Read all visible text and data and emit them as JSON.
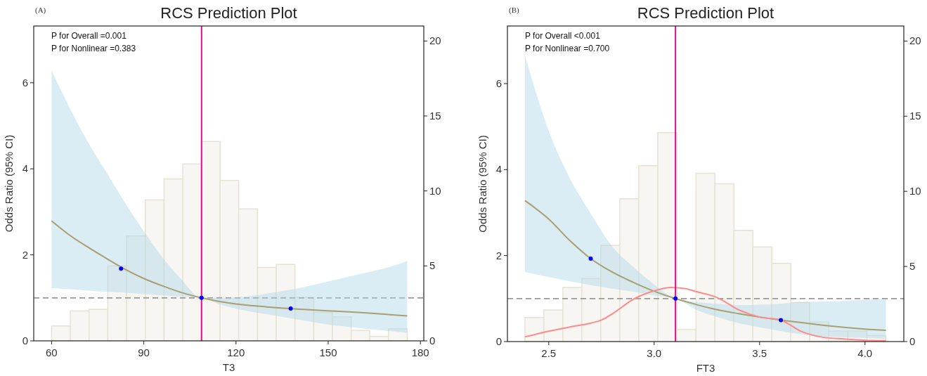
{
  "chart_data": [
    {
      "type": "line",
      "title": "RCS Prediction Plot",
      "xlabel": "T3",
      "ylabel": "Odds Ratio (95% CI)",
      "annotations": [
        "(A)",
        "P for Overall =0.001",
        "P for Nonlinear =0.383"
      ],
      "xlim": [
        54.2,
        181.1
      ],
      "xticks": [
        60,
        90,
        120,
        150,
        180
      ],
      "ylim": [
        0,
        7.32
      ],
      "yticks": [
        0,
        2,
        4,
        6
      ],
      "y2lim": [
        0,
        21
      ],
      "y2ticks": [
        0,
        5,
        10,
        15,
        20
      ],
      "ref_lines": [
        {
          "axis": "x",
          "value": 108.8,
          "color": "#e0108f",
          "line_style": "solid"
        },
        {
          "axis": "y",
          "value": 1,
          "color": "#999999",
          "line_style": "dashed"
        }
      ],
      "series": [
        {
          "type": "histogram",
          "axis": "y2",
          "color": "#f7f6f2",
          "bins": [
            60,
            66.1,
            72.2,
            78.3,
            84.4,
            90.5,
            96.6,
            102.7,
            108.7,
            114.8,
            120.9,
            127,
            133.1,
            139.2,
            145.3,
            151.4,
            157.5,
            163.5,
            169.6,
            175.7
          ],
          "values": [
            1,
            2,
            2.1,
            5,
            7,
            9.4,
            10.8,
            11.8,
            13.3,
            10.7,
            8.8,
            4.9,
            5.1,
            2.9,
            1.9,
            1.6,
            0.7,
            0.3,
            0.8
          ]
        },
        {
          "color": "#a89f72",
          "x": [
            60,
            66,
            72,
            78,
            84,
            90,
            96,
            102,
            108.8,
            115,
            122,
            130,
            140,
            150,
            160,
            170,
            175.7
          ],
          "values": [
            2.79,
            2.45,
            2.17,
            1.91,
            1.66,
            1.45,
            1.28,
            1.13,
            1,
            0.91,
            0.84,
            0.79,
            0.74,
            0.7,
            0.66,
            0.61,
            0.58
          ],
          "lower": [
            1.23,
            1.2,
            1.17,
            1.14,
            1.12,
            1.09,
            1.06,
            1.03,
            1,
            0.84,
            0.72,
            0.62,
            0.5,
            0.38,
            0.3,
            0.23,
            0.19
          ],
          "upper": [
            6.29,
            5.4,
            4.6,
            3.9,
            3.2,
            2.55,
            1.95,
            1.45,
            1,
            1,
            1.02,
            1.1,
            1.22,
            1.38,
            1.55,
            1.72,
            1.86
          ]
        },
        {
          "type": "scatter",
          "color": "#0000ff",
          "x": [
            82.6,
            108.8,
            137.8
          ],
          "values": [
            1.68,
            1,
            0.75
          ]
        }
      ]
    },
    {
      "type": "line",
      "title": "RCS Prediction Plot",
      "xlabel": "FT3",
      "ylabel": "Odds Ratio (95% CI)",
      "annotations": [
        "(B)",
        "P for Overall <0.001",
        "P for Nonlinear =0.700"
      ],
      "xlim": [
        2.304,
        4.184
      ],
      "xticks": [
        2.5,
        {
          "value": 3,
          "label": "3.0"
        },
        3.5,
        {
          "value": 4,
          "label": "4.0"
        }
      ],
      "ylim": [
        0,
        7.34
      ],
      "yticks": [
        0,
        2,
        4,
        6
      ],
      "y2lim": [
        0,
        21
      ],
      "y2ticks": [
        0,
        5,
        10,
        15,
        20
      ],
      "ref_lines": [
        {
          "axis": "x",
          "value": 3.101,
          "color": "#e0108f",
          "line_style": "solid"
        },
        {
          "axis": "y",
          "value": 1,
          "color": "#999999",
          "line_style": "dashed"
        }
      ],
      "series": [
        {
          "type": "histogram",
          "axis": "y2",
          "color": "#f7f6f2",
          "bins": [
            2.387,
            2.477,
            2.567,
            2.657,
            2.747,
            2.837,
            2.927,
            3.017,
            3.108,
            3.198,
            3.288,
            3.378,
            3.468,
            3.558,
            3.648,
            3.738,
            3.828,
            3.919,
            4.009,
            4.099
          ],
          "values": [
            1.6,
            2.1,
            3.6,
            4.2,
            6.4,
            9.5,
            11.7,
            13.9,
            0.8,
            11.2,
            10.5,
            7.4,
            6.3,
            5.2,
            2.6,
            1.3,
            0.7,
            0.7,
            0.4
          ]
        },
        {
          "color": "#a89f72",
          "x": [
            2.387,
            2.5,
            2.6,
            2.699,
            2.8,
            2.9,
            3.0,
            3.101,
            3.2,
            3.3,
            3.4,
            3.5,
            3.601,
            3.7,
            3.8,
            3.9,
            4.0,
            4.099
          ],
          "values": [
            3.28,
            2.85,
            2.35,
            1.93,
            1.62,
            1.38,
            1.17,
            1,
            0.86,
            0.74,
            0.65,
            0.57,
            0.5,
            0.44,
            0.38,
            0.33,
            0.29,
            0.26
          ],
          "lower": [
            1.62,
            1.5,
            1.4,
            1.31,
            1.23,
            1.16,
            1.07,
            1,
            0.74,
            0.57,
            0.43,
            0.33,
            0.24,
            0.17,
            0.12,
            0.1,
            0.08,
            0.06
          ],
          "upper": [
            6.66,
            4.9,
            3.8,
            2.98,
            2.22,
            1.74,
            1.33,
            1,
            0.92,
            0.88,
            0.85,
            0.86,
            0.88,
            0.92,
            0.93,
            0.95,
            0.97,
            0.99
          ]
        },
        {
          "type": "scatter",
          "color": "#0000ff",
          "x": [
            2.699,
            3.101,
            3.601
          ],
          "values": [
            1.93,
            1,
            0.5
          ]
        },
        {
          "color": "#ff8a8a",
          "x": [
            2.387,
            2.5,
            2.6,
            2.7,
            2.75,
            2.8,
            2.9,
            3.0,
            3.08,
            3.15,
            3.2,
            3.3,
            3.4,
            3.5,
            3.6,
            3.7,
            3.8,
            3.9,
            4.0,
            4.099
          ],
          "values": [
            0.11,
            0.24,
            0.34,
            0.43,
            0.5,
            0.64,
            0.98,
            1.18,
            1.26,
            1.23,
            1.16,
            1.02,
            0.74,
            0.57,
            0.5,
            0.23,
            0.1,
            0.06,
            0.03,
            0.02
          ]
        }
      ]
    }
  ]
}
